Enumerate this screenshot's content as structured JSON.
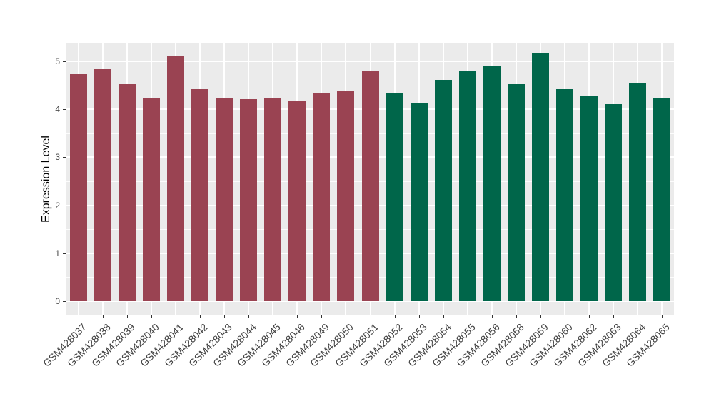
{
  "chart_data": {
    "type": "bar",
    "title": "",
    "xlabel": "",
    "ylabel": "Expression Level",
    "ylim": [
      0,
      5.4
    ],
    "yticks": [
      0,
      1,
      2,
      3,
      4,
      5
    ],
    "grid": "on",
    "legend_position": "none",
    "panel_background": "#EBEBEB",
    "group_colors": [
      "#9A4352",
      "#00664A"
    ],
    "categories": [
      "GSM428037",
      "GSM428038",
      "GSM428039",
      "GSM428040",
      "GSM428041",
      "GSM428042",
      "GSM428043",
      "GSM428044",
      "GSM428045",
      "GSM428046",
      "GSM428049",
      "GSM428050",
      "GSM428051",
      "GSM428052",
      "GSM428053",
      "GSM428054",
      "GSM428055",
      "GSM428056",
      "GSM428058",
      "GSM428059",
      "GSM428060",
      "GSM428062",
      "GSM428063",
      "GSM428064",
      "GSM428065"
    ],
    "values": [
      4.74,
      4.83,
      4.54,
      4.24,
      5.12,
      4.44,
      4.24,
      4.23,
      4.24,
      4.18,
      4.34,
      4.37,
      4.8,
      4.34,
      4.13,
      4.61,
      4.79,
      4.89,
      4.52,
      5.18,
      4.42,
      4.27,
      4.1,
      4.55,
      4.24
    ],
    "bar_group_index": [
      0,
      0,
      0,
      0,
      0,
      0,
      0,
      0,
      0,
      0,
      0,
      0,
      0,
      1,
      1,
      1,
      1,
      1,
      1,
      1,
      1,
      1,
      1,
      1,
      1
    ]
  }
}
